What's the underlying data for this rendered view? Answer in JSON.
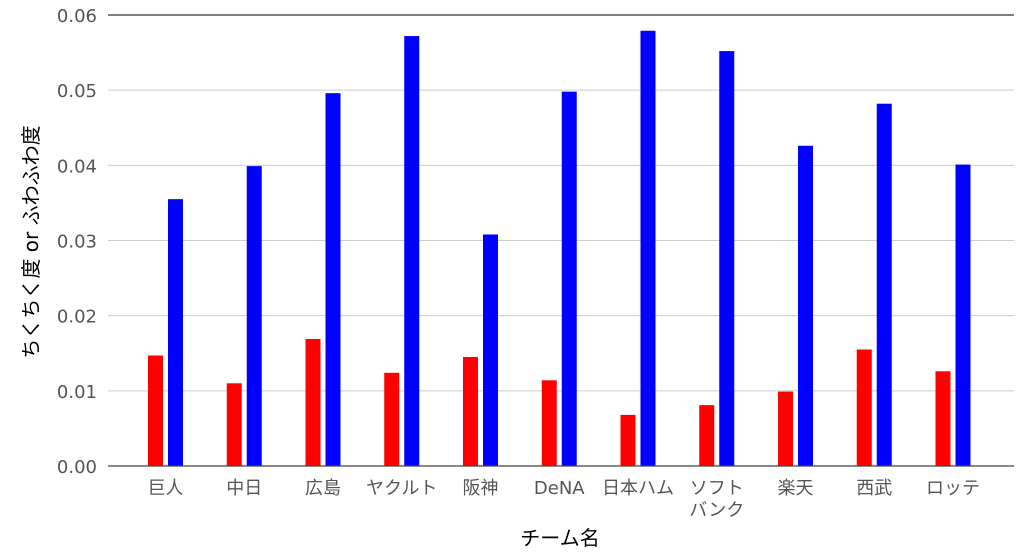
{
  "chart_data": {
    "type": "bar",
    "title": "",
    "xlabel": "チーム名",
    "ylabel": "ちくちく度 or ふわふわ度",
    "ylim": [
      0,
      0.06
    ],
    "yticks": [
      "0.00",
      "0.01",
      "0.02",
      "0.03",
      "0.04",
      "0.05",
      "0.06"
    ],
    "grid": "horizontal",
    "legend": "none",
    "categories": [
      "巨人",
      "中日",
      "広島",
      "ヤクルト",
      "阪神",
      "DeNA",
      "日本ハム",
      "ソフト\nバンク",
      "楽天",
      "西武",
      "ロッテ"
    ],
    "series": [
      {
        "color": "#ff0000",
        "values": [
          0.0147,
          0.011,
          0.0169,
          0.0124,
          0.0145,
          0.0114,
          0.0068,
          0.0081,
          0.0099,
          0.0155,
          0.0126
        ]
      },
      {
        "color": "#0000ff",
        "values": [
          0.0355,
          0.0399,
          0.0496,
          0.0572,
          0.0308,
          0.0498,
          0.0579,
          0.0552,
          0.0426,
          0.0482,
          0.0401
        ]
      }
    ]
  }
}
